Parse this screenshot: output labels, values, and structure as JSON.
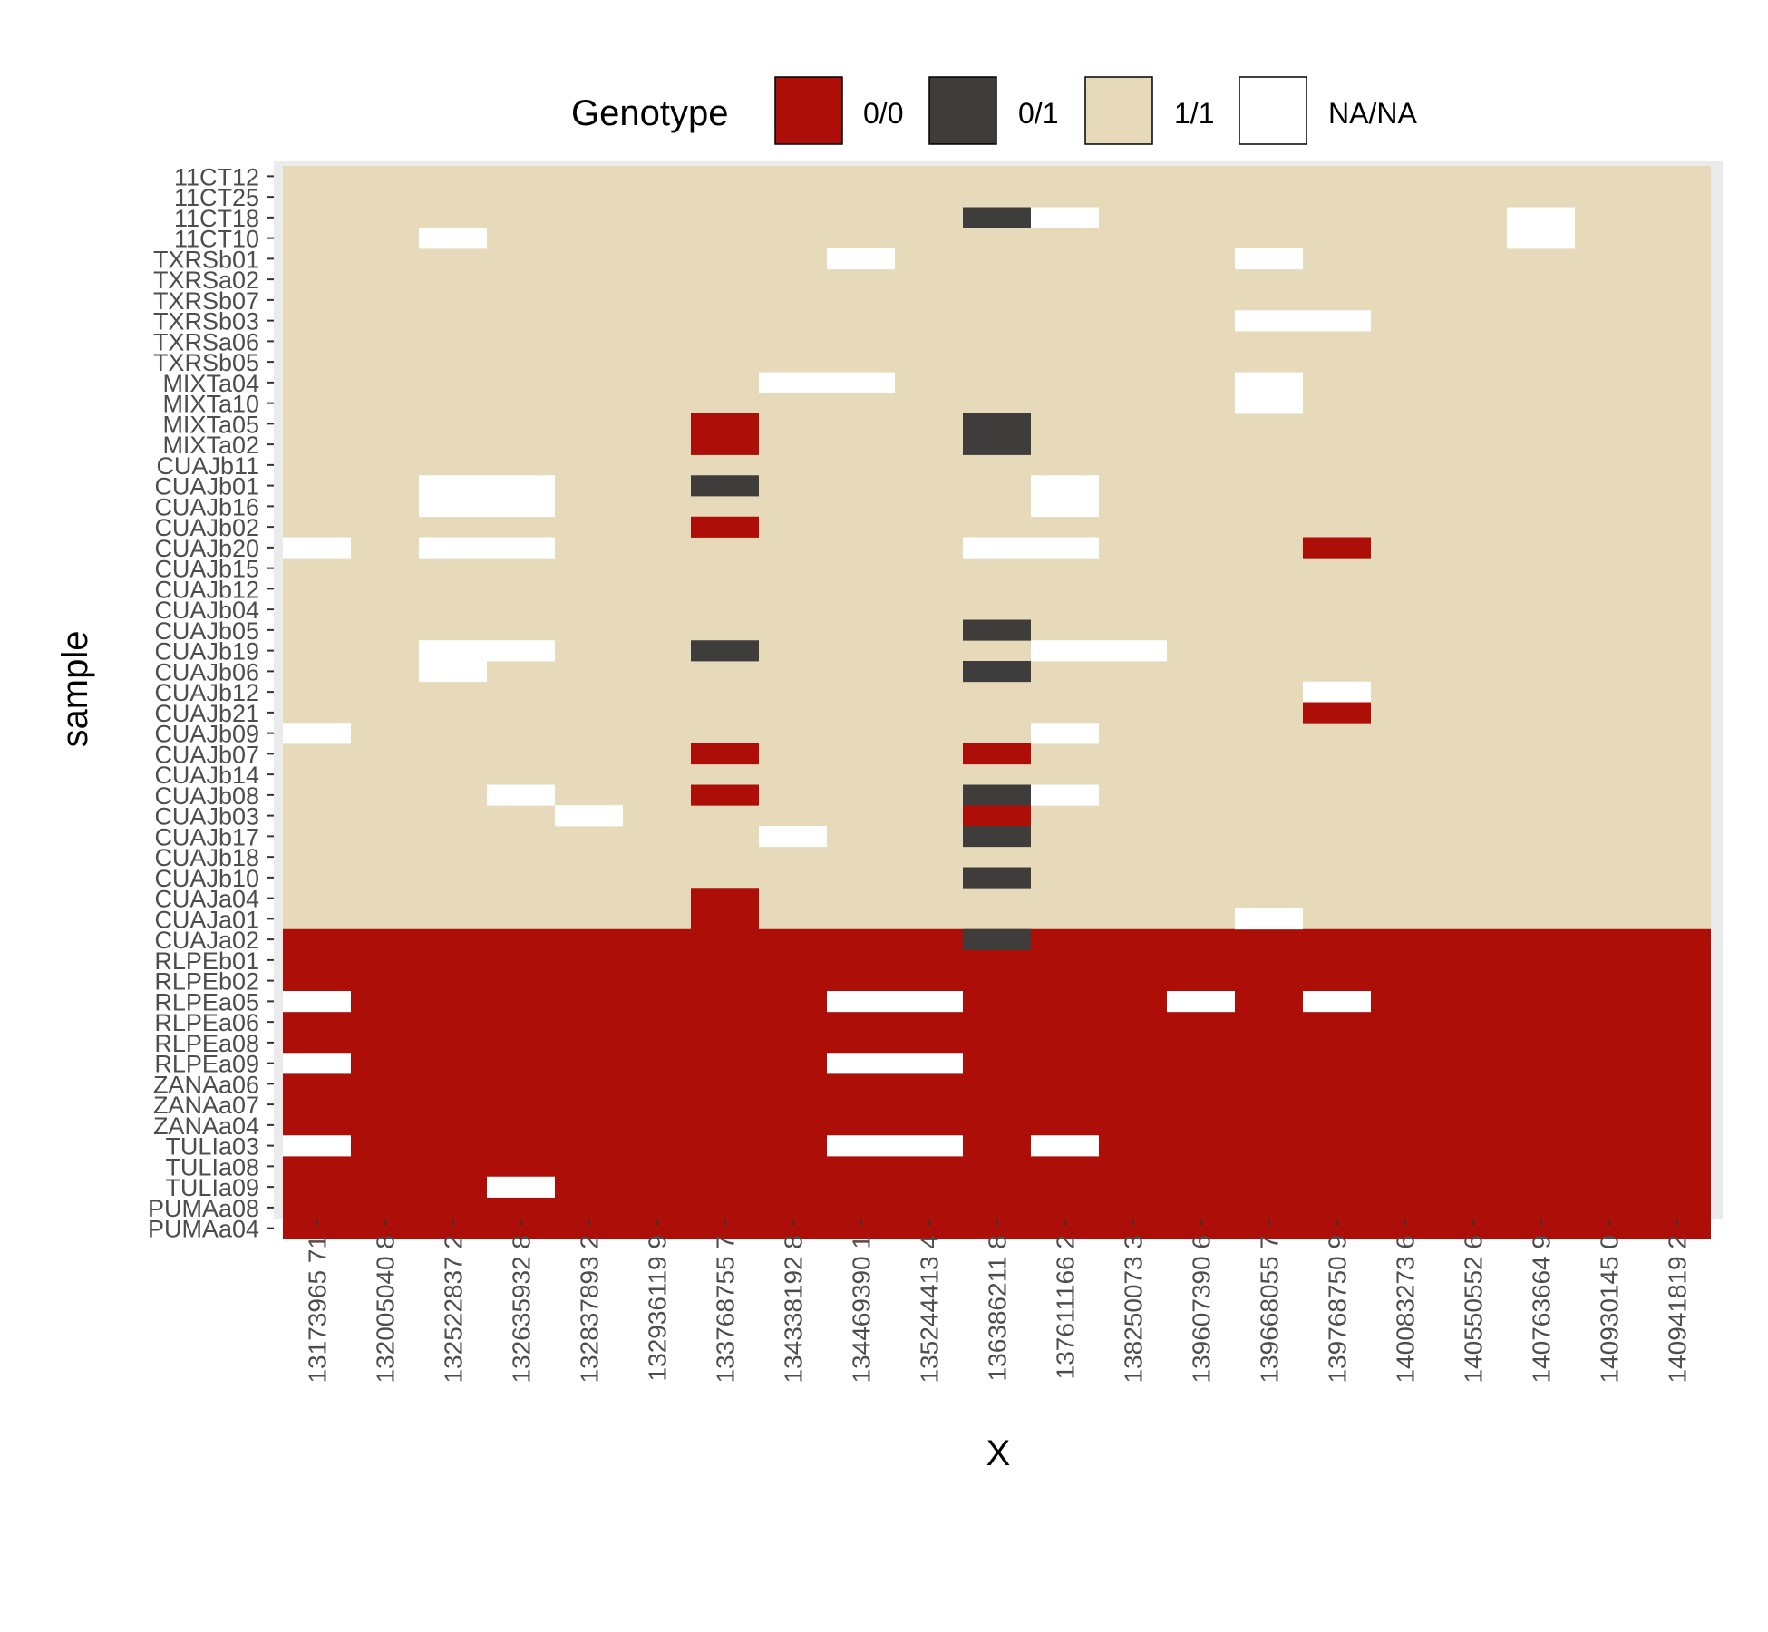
{
  "chart_data": {
    "type": "heatmap",
    "xlabel": "X",
    "ylabel": "sample",
    "legend": {
      "title": "Genotype",
      "position": "top",
      "entries": [
        {
          "label": "0/0",
          "color": "#ad0f08"
        },
        {
          "label": "0/1",
          "color": "#3e3d3b"
        },
        {
          "label": "1/1",
          "color": "#e6dabb"
        },
        {
          "label": "NA/NA",
          "color": "#ffffff"
        }
      ]
    },
    "x": [
      "13173965 71",
      "132005040 8",
      "132522837 2",
      "132635932 8",
      "132837893 2",
      "132936119 9",
      "133768755 7",
      "134338192 8",
      "134469390 1",
      "135244413 4",
      "136386211 8",
      "137611166 2",
      "138250073 3",
      "139607390 6",
      "139668055 7",
      "139768750 9",
      "140083273 6",
      "140550552 6",
      "140763664 9",
      "140930145 0",
      "140941819 2"
    ],
    "y": [
      "11CT12",
      "11CT25",
      "11CT18",
      "11CT10",
      "TXRSb01",
      "TXRSa02",
      "TXRSb07",
      "TXRSb03",
      "TXRSa06",
      "TXRSb05",
      "MIXTa04",
      "MIXTa10",
      "MIXTa05",
      "MIXTa02",
      "CUAJb11",
      "CUAJb01",
      "CUAJb16",
      "CUAJb02",
      "CUAJb20",
      "CUAJb15",
      "CUAJb12",
      "CUAJb04",
      "CUAJb05",
      "CUAJb19",
      "CUAJb06",
      "CUAJb12",
      "CUAJb21",
      "CUAJb09",
      "CUAJb07",
      "CUAJb14",
      "CUAJb08",
      "CUAJb03",
      "CUAJb17",
      "CUAJb18",
      "CUAJb10",
      "CUAJa04",
      "CUAJa01",
      "CUAJa02",
      "RLPEb01",
      "RLPEb02",
      "RLPEa05",
      "RLPEa06",
      "RLPEa08",
      "RLPEa09",
      "ZANAa06",
      "ZANAa07",
      "ZANAa04",
      "TULIa03",
      "TULIa08",
      "TULIa09",
      "PUMAa08",
      "PUMAa04"
    ],
    "default_genotype_upper": "1/1",
    "default_genotype_lower": "0/0",
    "upper_row_count": 37,
    "cells": [
      {
        "row": 2,
        "col": 10,
        "genotype": "0/1"
      },
      {
        "row": 2,
        "col": 11,
        "genotype": "NA/NA"
      },
      {
        "row": 3,
        "col": 2,
        "genotype": "NA/NA"
      },
      {
        "row": 2,
        "col": 18,
        "genotype": "NA/NA"
      },
      {
        "row": 3,
        "col": 18,
        "genotype": "NA/NA"
      },
      {
        "row": 4,
        "col": 8,
        "genotype": "NA/NA"
      },
      {
        "row": 4,
        "col": 14,
        "genotype": "NA/NA"
      },
      {
        "row": 7,
        "col": 14,
        "genotype": "NA/NA"
      },
      {
        "row": 7,
        "col": 15,
        "genotype": "NA/NA"
      },
      {
        "row": 10,
        "col": 7,
        "genotype": "NA/NA"
      },
      {
        "row": 10,
        "col": 8,
        "genotype": "NA/NA"
      },
      {
        "row": 10,
        "col": 14,
        "genotype": "NA/NA"
      },
      {
        "row": 11,
        "col": 14,
        "genotype": "NA/NA"
      },
      {
        "row": 12,
        "col": 6,
        "genotype": "0/0"
      },
      {
        "row": 13,
        "col": 6,
        "genotype": "0/0"
      },
      {
        "row": 12,
        "col": 10,
        "genotype": "0/1"
      },
      {
        "row": 13,
        "col": 10,
        "genotype": "0/1"
      },
      {
        "row": 15,
        "col": 2,
        "genotype": "NA/NA"
      },
      {
        "row": 16,
        "col": 2,
        "genotype": "NA/NA"
      },
      {
        "row": 15,
        "col": 3,
        "genotype": "NA/NA"
      },
      {
        "row": 16,
        "col": 3,
        "genotype": "NA/NA"
      },
      {
        "row": 15,
        "col": 6,
        "genotype": "0/1"
      },
      {
        "row": 15,
        "col": 11,
        "genotype": "NA/NA"
      },
      {
        "row": 16,
        "col": 11,
        "genotype": "NA/NA"
      },
      {
        "row": 17,
        "col": 6,
        "genotype": "0/0"
      },
      {
        "row": 18,
        "col": 0,
        "genotype": "NA/NA"
      },
      {
        "row": 18,
        "col": 2,
        "genotype": "NA/NA"
      },
      {
        "row": 18,
        "col": 3,
        "genotype": "NA/NA"
      },
      {
        "row": 18,
        "col": 10,
        "genotype": "NA/NA"
      },
      {
        "row": 18,
        "col": 11,
        "genotype": "NA/NA"
      },
      {
        "row": 18,
        "col": 15,
        "genotype": "0/0"
      },
      {
        "row": 22,
        "col": 10,
        "genotype": "0/1"
      },
      {
        "row": 23,
        "col": 2,
        "genotype": "NA/NA"
      },
      {
        "row": 23,
        "col": 3,
        "genotype": "NA/NA"
      },
      {
        "row": 23,
        "col": 6,
        "genotype": "0/1"
      },
      {
        "row": 23,
        "col": 11,
        "genotype": "NA/NA"
      },
      {
        "row": 23,
        "col": 12,
        "genotype": "NA/NA"
      },
      {
        "row": 24,
        "col": 2,
        "genotype": "NA/NA"
      },
      {
        "row": 24,
        "col": 10,
        "genotype": "0/1"
      },
      {
        "row": 25,
        "col": 15,
        "genotype": "NA/NA"
      },
      {
        "row": 26,
        "col": 15,
        "genotype": "0/0"
      },
      {
        "row": 27,
        "col": 0,
        "genotype": "NA/NA"
      },
      {
        "row": 27,
        "col": 11,
        "genotype": "NA/NA"
      },
      {
        "row": 28,
        "col": 6,
        "genotype": "0/0"
      },
      {
        "row": 28,
        "col": 10,
        "genotype": "0/0"
      },
      {
        "row": 30,
        "col": 3,
        "genotype": "NA/NA"
      },
      {
        "row": 30,
        "col": 6,
        "genotype": "0/0"
      },
      {
        "row": 30,
        "col": 10,
        "genotype": "0/1"
      },
      {
        "row": 30,
        "col": 11,
        "genotype": "NA/NA"
      },
      {
        "row": 31,
        "col": 4,
        "genotype": "NA/NA"
      },
      {
        "row": 31,
        "col": 10,
        "genotype": "0/0"
      },
      {
        "row": 32,
        "col": 7,
        "genotype": "NA/NA"
      },
      {
        "row": 32,
        "col": 10,
        "genotype": "0/1"
      },
      {
        "row": 34,
        "col": 10,
        "genotype": "0/1"
      },
      {
        "row": 35,
        "col": 6,
        "genotype": "0/0"
      },
      {
        "row": 36,
        "col": 6,
        "genotype": "0/0"
      },
      {
        "row": 36,
        "col": 14,
        "genotype": "NA/NA"
      },
      {
        "row": 37,
        "col": 10,
        "genotype": "0/1"
      },
      {
        "row": 40,
        "col": 0,
        "genotype": "NA/NA"
      },
      {
        "row": 40,
        "col": 8,
        "genotype": "NA/NA"
      },
      {
        "row": 40,
        "col": 9,
        "genotype": "NA/NA"
      },
      {
        "row": 40,
        "col": 13,
        "genotype": "NA/NA"
      },
      {
        "row": 40,
        "col": 15,
        "genotype": "NA/NA"
      },
      {
        "row": 43,
        "col": 0,
        "genotype": "NA/NA"
      },
      {
        "row": 43,
        "col": 8,
        "genotype": "NA/NA"
      },
      {
        "row": 43,
        "col": 9,
        "genotype": "NA/NA"
      },
      {
        "row": 47,
        "col": 0,
        "genotype": "NA/NA"
      },
      {
        "row": 47,
        "col": 8,
        "genotype": "NA/NA"
      },
      {
        "row": 47,
        "col": 9,
        "genotype": "NA/NA"
      },
      {
        "row": 47,
        "col": 11,
        "genotype": "NA/NA"
      },
      {
        "row": 49,
        "col": 3,
        "genotype": "NA/NA"
      }
    ]
  }
}
